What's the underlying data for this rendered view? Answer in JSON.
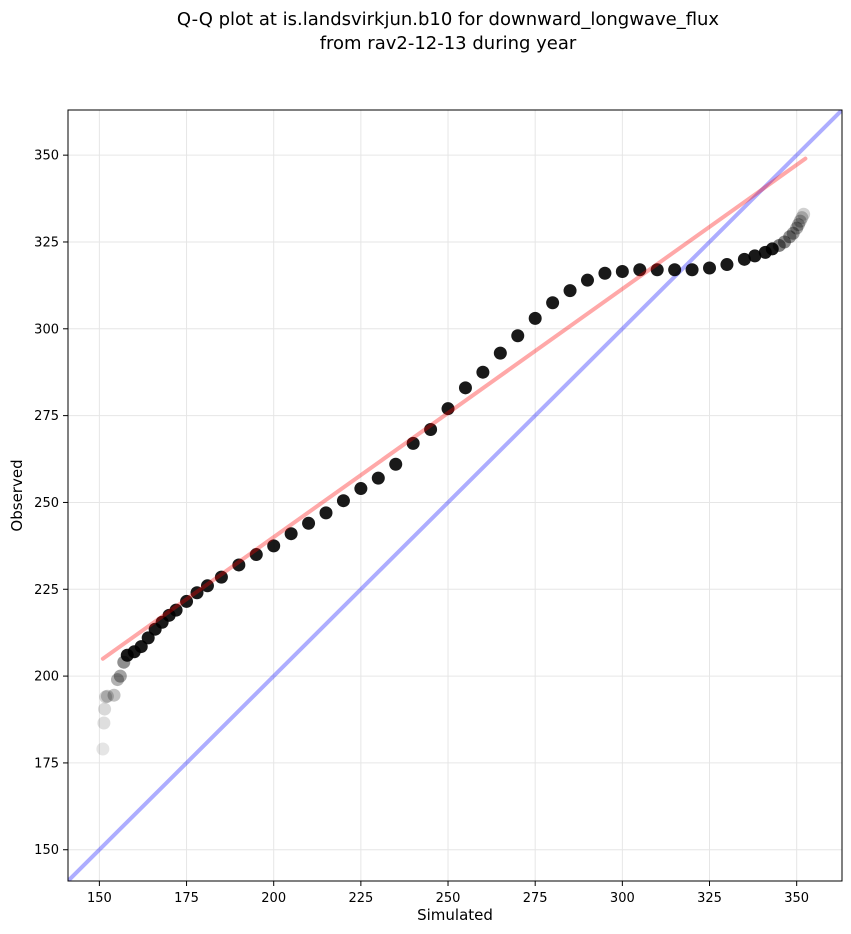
{
  "chart_data": {
    "type": "scatter",
    "title": "Q-Q plot at is.landsvirkjun.b10 for downward_longwave_flux",
    "subtitle": "from rav2-12-13 during year",
    "xlabel": "Simulated",
    "ylabel": "Observed",
    "xlim": [
      141,
      363
    ],
    "ylim": [
      141,
      363
    ],
    "xticks": [
      150,
      175,
      200,
      225,
      250,
      275,
      300,
      325,
      350
    ],
    "yticks": [
      150,
      175,
      200,
      225,
      250,
      275,
      300,
      325,
      350
    ],
    "xtick_labels": [
      "150",
      "175",
      "200",
      "225",
      "250",
      "275",
      "300",
      "325",
      "350"
    ],
    "ytick_labels": [
      "150",
      "175",
      "200",
      "225",
      "250",
      "275",
      "300",
      "325",
      "350"
    ],
    "grid": true,
    "series": [
      {
        "kind": "quantile-points",
        "color": "#000000",
        "x": [
          151,
          151.3,
          151.5,
          151.8,
          152.3,
          154.2,
          155.2,
          156,
          157,
          158,
          160,
          162,
          164,
          166,
          168,
          170,
          172,
          175,
          178,
          181,
          185,
          190,
          195,
          200,
          205,
          210,
          215,
          220,
          225,
          230,
          235,
          240,
          245,
          250,
          255,
          260,
          265,
          270,
          275,
          280,
          285,
          290,
          295,
          300,
          305,
          310,
          315,
          320,
          325,
          330,
          335,
          338,
          341,
          343,
          345,
          346.5,
          348,
          349,
          350,
          350.5,
          351,
          351.5,
          352
        ],
        "y": [
          179,
          186.5,
          190.5,
          194,
          194.2,
          194.5,
          199,
          200,
          204,
          206,
          207,
          208.5,
          211,
          213.5,
          215.5,
          217.5,
          219,
          221.5,
          224,
          226,
          228.5,
          232,
          235,
          237.5,
          241,
          244,
          247,
          250.5,
          254,
          257,
          261,
          267,
          271,
          277,
          283,
          287.5,
          293,
          298,
          303,
          307.5,
          311,
          314,
          316,
          316.5,
          317,
          317,
          317,
          317,
          317.5,
          318.5,
          320,
          321,
          322,
          323,
          324,
          325,
          326.5,
          327.5,
          329,
          330,
          331,
          332,
          333
        ]
      },
      {
        "kind": "fit-line",
        "color": "#ff0000",
        "x": [
          151,
          352.5
        ],
        "y": [
          205,
          349
        ]
      },
      {
        "kind": "identity-line",
        "color": "#0000ff",
        "x": [
          141,
          363
        ],
        "y": [
          141,
          363
        ]
      }
    ]
  }
}
